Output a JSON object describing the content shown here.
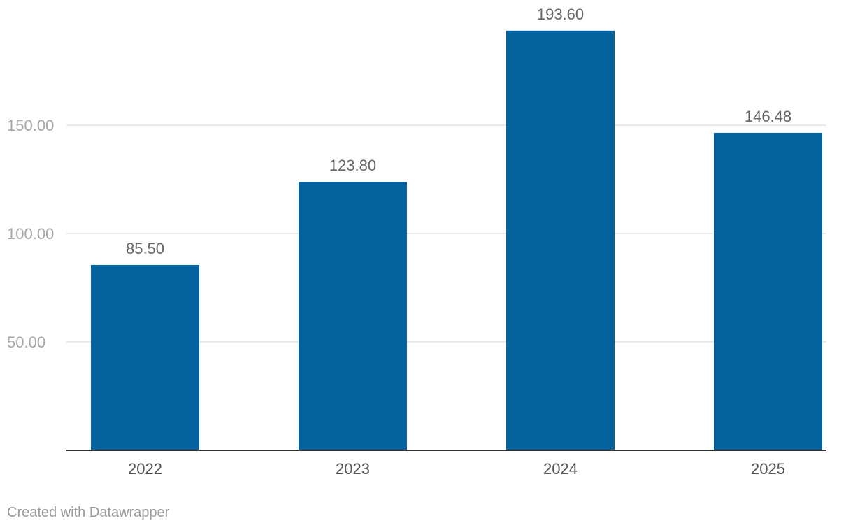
{
  "chart_data": {
    "type": "bar",
    "categories": [
      "2022",
      "2023",
      "2024",
      "2025"
    ],
    "values": [
      85.5,
      123.8,
      193.6,
      146.48
    ],
    "value_labels": [
      "85.50",
      "123.80",
      "193.60",
      "146.48"
    ],
    "yticks": [
      50,
      100,
      150
    ],
    "ytick_labels": [
      "50.00",
      "100.00",
      "150.00"
    ],
    "ylim": [
      0,
      200
    ],
    "grid": true,
    "bar_color": "#04629f",
    "title": "",
    "xlabel": "",
    "ylabel": ""
  },
  "footer": {
    "credit": "Created with Datawrapper"
  }
}
